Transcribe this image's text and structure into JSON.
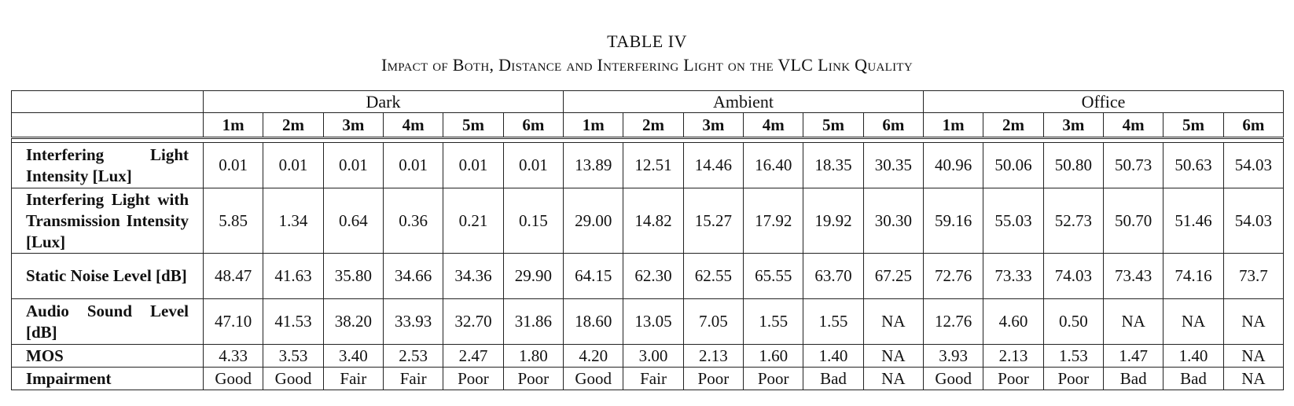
{
  "caption": {
    "label": "TABLE IV",
    "title": "Impact of Both, Distance and Interfering Light on the VLC Link Quality"
  },
  "table": {
    "groups": [
      "Dark",
      "Ambient",
      "Office"
    ],
    "distances": [
      "1m",
      "2m",
      "3m",
      "4m",
      "5m",
      "6m"
    ],
    "rows": [
      {
        "label": "Interfering Light Intensity [Lux]",
        "values": [
          "0.01",
          "0.01",
          "0.01",
          "0.01",
          "0.01",
          "0.01",
          "13.89",
          "12.51",
          "14.46",
          "16.40",
          "18.35",
          "30.35",
          "40.96",
          "50.06",
          "50.80",
          "50.73",
          "50.63",
          "54.03"
        ]
      },
      {
        "label": "Interfering Light with Transmission Intensity [Lux]",
        "values": [
          "5.85",
          "1.34",
          "0.64",
          "0.36",
          "0.21",
          "0.15",
          "29.00",
          "14.82",
          "15.27",
          "17.92",
          "19.92",
          "30.30",
          "59.16",
          "55.03",
          "52.73",
          "50.70",
          "51.46",
          "54.03"
        ]
      },
      {
        "label": "Static Noise Level [dB]",
        "values": [
          "48.47",
          "41.63",
          "35.80",
          "34.66",
          "34.36",
          "29.90",
          "64.15",
          "62.30",
          "62.55",
          "65.55",
          "63.70",
          "67.25",
          "72.76",
          "73.33",
          "74.03",
          "73.43",
          "74.16",
          "73.7"
        ]
      },
      {
        "label": "Audio Sound Level [dB]",
        "values": [
          "47.10",
          "41.53",
          "38.20",
          "33.93",
          "32.70",
          "31.86",
          "18.60",
          "13.05",
          "7.05",
          "1.55",
          "1.55",
          "NA",
          "12.76",
          "4.60",
          "0.50",
          "NA",
          "NA",
          "NA"
        ]
      },
      {
        "label": "MOS",
        "values": [
          "4.33",
          "3.53",
          "3.40",
          "2.53",
          "2.47",
          "1.80",
          "4.20",
          "3.00",
          "2.13",
          "1.60",
          "1.40",
          "NA",
          "3.93",
          "2.13",
          "1.53",
          "1.47",
          "1.40",
          "NA"
        ]
      },
      {
        "label": "Impairment",
        "values": [
          "Good",
          "Good",
          "Fair",
          "Fair",
          "Poor",
          "Poor",
          "Good",
          "Fair",
          "Poor",
          "Poor",
          "Bad",
          "NA",
          "Good",
          "Poor",
          "Poor",
          "Bad",
          "Bad",
          "NA"
        ]
      }
    ]
  }
}
